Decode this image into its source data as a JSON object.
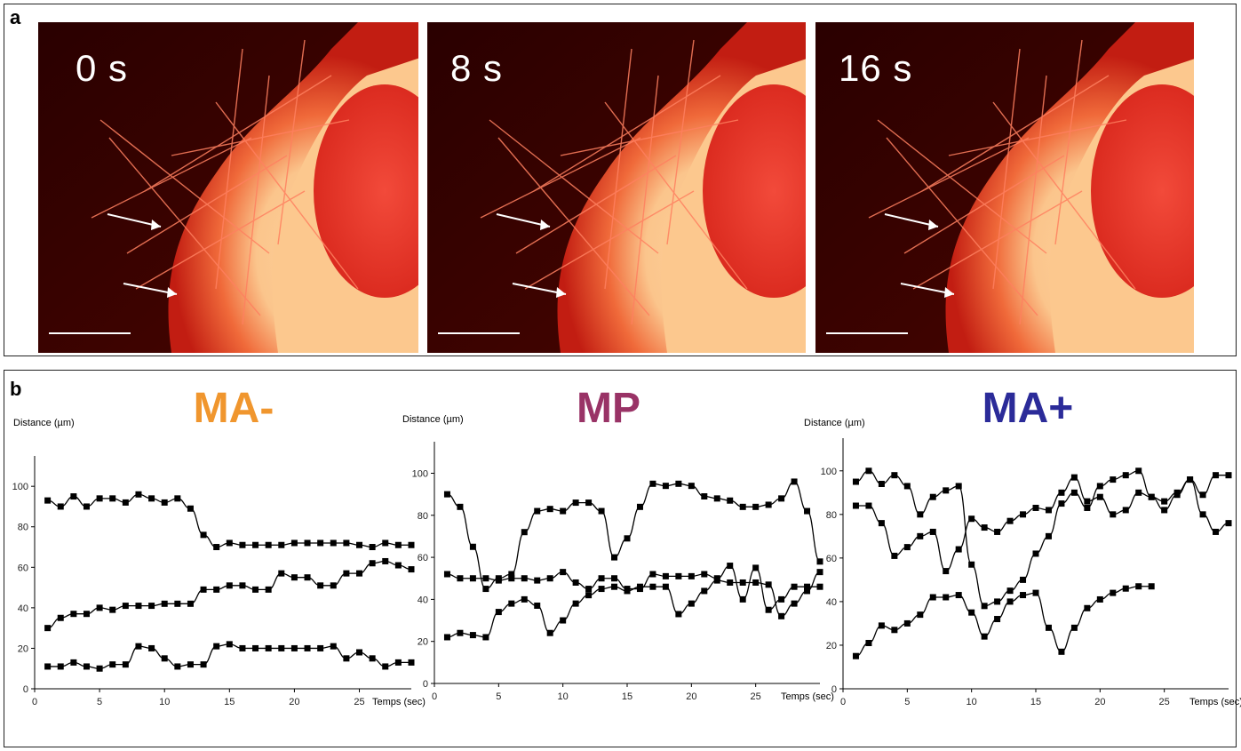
{
  "panel_a": {
    "letter": "a",
    "frames": [
      {
        "time_label": "0 s"
      },
      {
        "time_label": "8 s"
      },
      {
        "time_label": "16 s"
      }
    ]
  },
  "panel_b": {
    "letter": "b"
  },
  "colors": {
    "MA-": "#f0962e",
    "MP": "#993366",
    "MA+": "#2b2b99"
  },
  "chart_data": [
    {
      "type": "line",
      "title": "MA-",
      "ylabel": "Distance (µm)",
      "xlabel": "Temps (sec)",
      "xlim": [
        0,
        29
      ],
      "ylim": [
        0,
        115
      ],
      "xticks": [
        0,
        5,
        10,
        15,
        20,
        25
      ],
      "yticks": [
        0,
        20,
        40,
        60,
        80,
        100
      ],
      "series": [
        {
          "x": [
            1,
            2,
            3,
            4,
            5,
            6,
            7,
            8,
            9,
            10,
            11,
            12,
            13,
            14,
            15,
            16,
            17,
            18,
            19,
            20,
            21,
            22,
            23,
            24,
            25,
            26,
            27,
            28,
            29
          ],
          "values": [
            93,
            90,
            95,
            90,
            94,
            94,
            92,
            96,
            94,
            92,
            94,
            89,
            76,
            70,
            72,
            71,
            71,
            71,
            71,
            72,
            72,
            72,
            72,
            72,
            71,
            70,
            72,
            71,
            71
          ]
        },
        {
          "x": [
            1,
            2,
            3,
            4,
            5,
            6,
            7,
            8,
            9,
            10,
            11,
            12,
            13,
            14,
            15,
            16,
            17,
            18,
            19,
            20,
            21,
            22,
            23,
            24,
            25,
            26,
            27,
            28,
            29
          ],
          "values": [
            30,
            35,
            37,
            37,
            40,
            39,
            41,
            41,
            41,
            42,
            42,
            42,
            49,
            49,
            51,
            51,
            49,
            49,
            57,
            55,
            55,
            51,
            51,
            57,
            57,
            62,
            63,
            61,
            59
          ]
        },
        {
          "x": [
            1,
            2,
            3,
            4,
            5,
            6,
            7,
            8,
            9,
            10,
            11,
            12,
            13,
            14,
            15,
            16,
            17,
            18,
            19,
            20,
            21,
            22,
            23,
            24,
            25,
            26,
            27,
            28,
            29
          ],
          "values": [
            11,
            11,
            13,
            11,
            10,
            12,
            12,
            21,
            20,
            15,
            11,
            12,
            12,
            21,
            22,
            20,
            20,
            20,
            20,
            20,
            20,
            20,
            21,
            15,
            18,
            15,
            11,
            13,
            13
          ]
        }
      ]
    },
    {
      "type": "line",
      "title": "MP",
      "ylabel": "Distance (µm)",
      "xlabel": "Temps (sec)",
      "xlim": [
        0,
        30
      ],
      "ylim": [
        0,
        115
      ],
      "xticks": [
        0,
        5,
        10,
        15,
        20,
        25
      ],
      "yticks": [
        0,
        20,
        40,
        60,
        80,
        100
      ],
      "series": [
        {
          "x": [
            1,
            2,
            3,
            4,
            5,
            6,
            7,
            8,
            9,
            10,
            11,
            12,
            13,
            14,
            15,
            16,
            17,
            18,
            19,
            20,
            21,
            22,
            23,
            24,
            25,
            26,
            27,
            28,
            29,
            30
          ],
          "values": [
            90,
            84,
            65,
            45,
            50,
            52,
            72,
            82,
            83,
            82,
            86,
            86,
            82,
            60,
            69,
            84,
            95,
            94,
            95,
            94,
            89,
            88,
            87,
            84,
            84,
            85,
            88,
            96,
            82,
            58
          ]
        },
        {
          "x": [
            1,
            2,
            3,
            4,
            5,
            6,
            7,
            8,
            9,
            10,
            11,
            12,
            13,
            14,
            15,
            16,
            17,
            18,
            19,
            20,
            21,
            22,
            23,
            24,
            25,
            26,
            27,
            28,
            29,
            30
          ],
          "values": [
            52,
            50,
            50,
            50,
            49,
            50,
            50,
            49,
            50,
            53,
            48,
            45,
            50,
            50,
            45,
            45,
            52,
            51,
            51,
            51,
            52,
            50,
            56,
            40,
            55,
            35,
            40,
            46,
            46,
            46
          ]
        },
        {
          "x": [
            1,
            2,
            3,
            4,
            5,
            6,
            7,
            8,
            9,
            10,
            11,
            12,
            13,
            14,
            15,
            16,
            17,
            18,
            19,
            20,
            21,
            22,
            23,
            24,
            25,
            26,
            27,
            28,
            29,
            30
          ],
          "values": [
            22,
            24,
            23,
            22,
            34,
            38,
            40,
            37,
            24,
            30,
            38,
            42,
            45,
            46,
            44,
            46,
            46,
            46,
            33,
            38,
            44,
            49,
            48,
            48,
            48,
            47,
            32,
            38,
            44,
            53
          ]
        }
      ]
    },
    {
      "type": "line",
      "title": "MA+",
      "ylabel": "Distance (µm)",
      "xlabel": "Temps (sec)",
      "xlim": [
        0,
        30
      ],
      "ylim": [
        0,
        115
      ],
      "xticks": [
        0,
        5,
        10,
        15,
        20,
        25
      ],
      "yticks": [
        0,
        20,
        40,
        60,
        80,
        100
      ],
      "series": [
        {
          "x": [
            1,
            2,
            3,
            4,
            5,
            6,
            7,
            8,
            9,
            10,
            11,
            12,
            13,
            14,
            15,
            16,
            17,
            18,
            19,
            20,
            21,
            22,
            23,
            24,
            25,
            26,
            27,
            28,
            29,
            30
          ],
          "values": [
            95,
            100,
            94,
            98,
            93,
            80,
            88,
            91,
            93,
            57,
            38,
            40,
            45,
            50,
            62,
            70,
            85,
            90,
            83,
            93,
            96,
            98,
            100,
            88,
            82,
            89,
            96,
            89,
            98,
            98
          ]
        },
        {
          "x": [
            1,
            2,
            3,
            4,
            5,
            6,
            7,
            8,
            9,
            10,
            11,
            12,
            13,
            14,
            15,
            16,
            17,
            18,
            19,
            20,
            21,
            22,
            23,
            24,
            25,
            26,
            27,
            28,
            29,
            30
          ],
          "values": [
            84,
            84,
            76,
            61,
            65,
            70,
            72,
            54,
            64,
            78,
            74,
            72,
            77,
            80,
            83,
            82,
            90,
            97,
            86,
            88,
            80,
            82,
            90,
            88,
            86,
            90,
            96,
            80,
            72,
            76
          ]
        },
        {
          "x": [
            1,
            2,
            3,
            4,
            5,
            6,
            7,
            8,
            9,
            10,
            11,
            12,
            13,
            14,
            15,
            16,
            17,
            18,
            19,
            20,
            21,
            22,
            23,
            24
          ],
          "values": [
            15,
            21,
            29,
            27,
            30,
            34,
            42,
            42,
            43,
            35,
            24,
            32,
            40,
            43,
            44,
            28,
            17,
            28,
            37,
            41,
            44,
            46,
            47,
            47
          ]
        }
      ]
    }
  ]
}
